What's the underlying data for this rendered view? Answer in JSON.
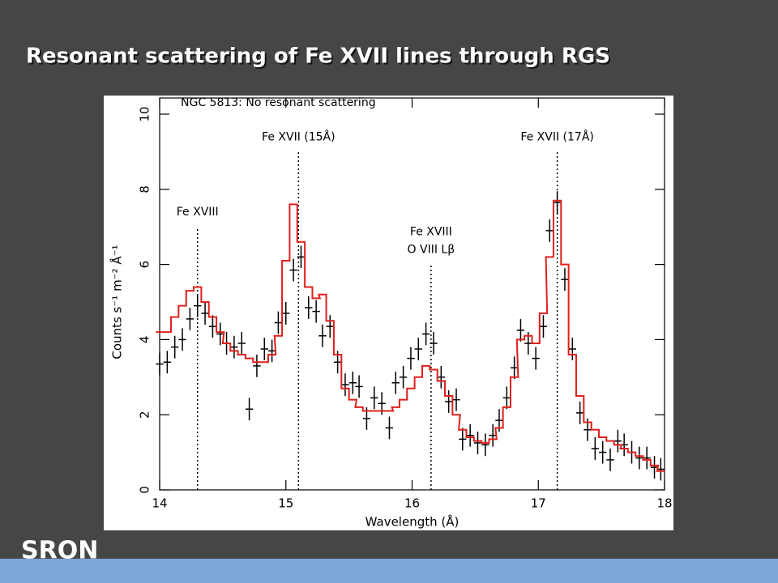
{
  "title": "Resonant scattering of Fe XVII lines through RGS",
  "logo": "SRON",
  "chart_data": {
    "type": "step-with-errors",
    "title": "NGC 5813: No resonant scattering",
    "x_label": "Wavelength (Å)",
    "y_label": "Counts s⁻¹ m⁻² Å⁻¹",
    "xlim": [
      14,
      18
    ],
    "xticks": [
      14,
      15,
      16,
      17,
      18
    ],
    "ylim": [
      0,
      10
    ],
    "yticks": [
      0,
      2,
      4,
      6,
      8,
      10
    ],
    "x_error": 0.03,
    "y_error": 0.3,
    "annotations": [
      {
        "lines": [
          "Fe XVIII"
        ],
        "x": 14.3,
        "line_top": 7
      },
      {
        "lines": [
          "Fe XVII (15Å)"
        ],
        "x": 15.1,
        "line_top": 9
      },
      {
        "lines": [
          "Fe XVIII",
          "O VIII Lβ"
        ],
        "x": 16.15,
        "line_top": 6
      },
      {
        "lines": [
          "Fe XVII (17Å)"
        ],
        "x": 17.15,
        "line_top": 9
      }
    ],
    "series": [
      {
        "name": "data",
        "color": "#000000",
        "kind": "points",
        "x": [
          14.0,
          14.06,
          14.12,
          14.18,
          14.24,
          14.3,
          14.36,
          14.42,
          14.48,
          14.53,
          14.59,
          14.65,
          14.71,
          14.77,
          14.83,
          14.89,
          14.94,
          15.0,
          15.06,
          15.12,
          15.18,
          15.24,
          15.29,
          15.35,
          15.41,
          15.47,
          15.53,
          15.58,
          15.64,
          15.7,
          15.76,
          15.82,
          15.87,
          15.93,
          15.99,
          16.05,
          16.11,
          16.17,
          16.23,
          16.29,
          16.35,
          16.4,
          16.46,
          16.52,
          16.58,
          16.64,
          16.69,
          16.75,
          16.81,
          16.86,
          16.92,
          16.98,
          17.04,
          17.09,
          17.15,
          17.21,
          17.27,
          17.33,
          17.39,
          17.45,
          17.51,
          17.57,
          17.63,
          17.68,
          17.74,
          17.8,
          17.86,
          17.92,
          17.97
        ],
        "values": [
          3.35,
          3.4,
          3.8,
          4.0,
          4.55,
          4.9,
          4.7,
          4.35,
          4.15,
          3.9,
          3.8,
          3.9,
          2.15,
          3.3,
          3.75,
          3.7,
          4.45,
          4.7,
          5.85,
          6.2,
          4.85,
          4.75,
          4.1,
          4.35,
          3.4,
          2.8,
          2.85,
          2.75,
          1.9,
          2.45,
          2.3,
          1.65,
          2.85,
          3.0,
          3.5,
          3.75,
          4.15,
          3.9,
          3.0,
          2.35,
          2.4,
          1.35,
          1.45,
          1.25,
          1.2,
          1.45,
          1.85,
          2.45,
          3.25,
          4.25,
          3.9,
          3.5,
          4.35,
          6.9,
          7.65,
          5.6,
          3.75,
          2.05,
          1.6,
          1.1,
          1.0,
          0.8,
          1.3,
          1.2,
          1.0,
          0.85,
          0.85,
          0.6,
          0.55
        ]
      },
      {
        "name": "model",
        "color": "#e0201c",
        "kind": "step",
        "x": [
          14.0,
          14.06,
          14.12,
          14.18,
          14.24,
          14.3,
          14.36,
          14.42,
          14.48,
          14.53,
          14.59,
          14.65,
          14.71,
          14.77,
          14.83,
          14.89,
          14.94,
          15.0,
          15.06,
          15.12,
          15.18,
          15.24,
          15.29,
          15.35,
          15.41,
          15.47,
          15.53,
          15.58,
          15.64,
          15.7,
          15.76,
          15.82,
          15.87,
          15.93,
          15.99,
          16.05,
          16.11,
          16.17,
          16.23,
          16.29,
          16.35,
          16.4,
          16.46,
          16.52,
          16.58,
          16.64,
          16.69,
          16.75,
          16.81,
          16.86,
          16.92,
          16.98,
          17.04,
          17.09,
          17.15,
          17.21,
          17.27,
          17.33,
          17.39,
          17.45,
          17.51,
          17.57,
          17.63,
          17.68,
          17.74,
          17.8,
          17.86,
          17.92,
          17.97
        ],
        "values": [
          4.2,
          4.2,
          4.6,
          4.9,
          5.3,
          5.4,
          5.0,
          4.6,
          4.2,
          3.9,
          3.7,
          3.6,
          3.5,
          3.4,
          3.4,
          3.6,
          4.1,
          6.1,
          7.6,
          6.6,
          5.4,
          5.1,
          5.2,
          4.5,
          3.6,
          2.7,
          2.4,
          2.2,
          2.1,
          2.1,
          2.1,
          2.1,
          2.2,
          2.4,
          2.7,
          3.0,
          3.3,
          3.2,
          2.9,
          2.5,
          2.0,
          1.6,
          1.4,
          1.3,
          1.25,
          1.35,
          1.65,
          2.2,
          3.0,
          4.0,
          4.1,
          3.9,
          4.7,
          6.2,
          7.7,
          6.0,
          3.6,
          2.5,
          1.8,
          1.6,
          1.4,
          1.3,
          1.2,
          1.1,
          1.0,
          0.9,
          0.8,
          0.65,
          0.5
        ]
      }
    ]
  }
}
